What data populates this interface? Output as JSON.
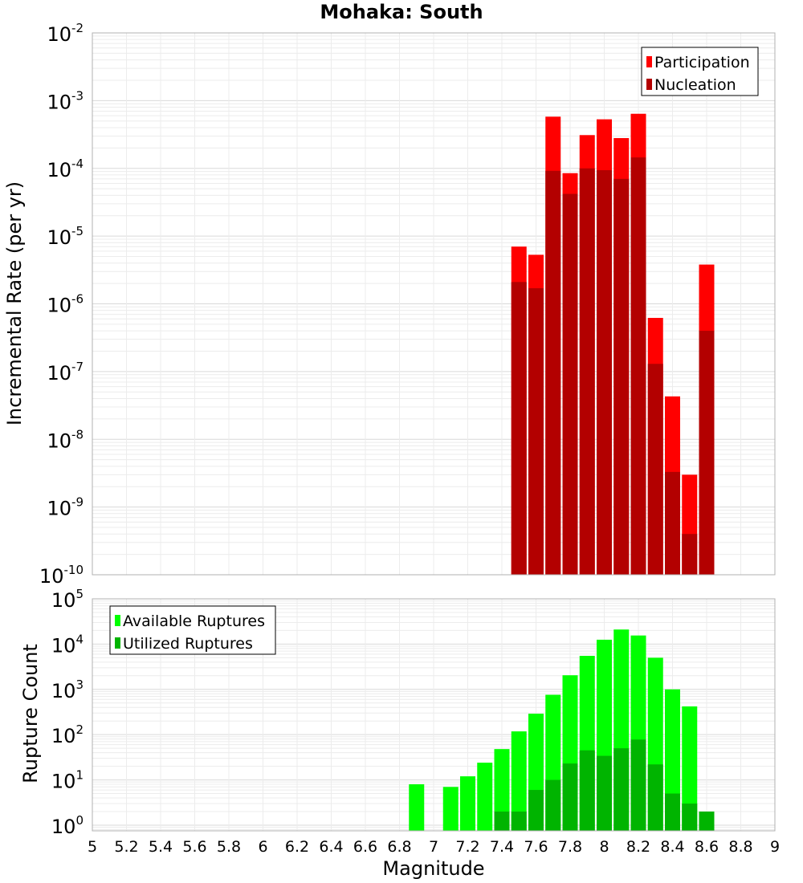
{
  "chart_data": [
    {
      "type": "bar",
      "title": "Mohaka: South",
      "xlabel": "",
      "ylabel": "Incremental Rate (per yr)",
      "yscale": "log",
      "ylim": [
        1e-10,
        0.01
      ],
      "xlim": [
        5,
        9
      ],
      "grid": true,
      "legend_position": "top-right",
      "x": [
        7.5,
        7.6,
        7.7,
        7.8,
        7.9,
        8.0,
        8.1,
        8.2,
        8.3,
        8.4,
        8.5,
        8.6
      ],
      "series": [
        {
          "name": "Participation",
          "color": "#ff0000",
          "values": [
            7e-06,
            5.3e-06,
            0.00058,
            8.5e-05,
            0.00031,
            0.00053,
            0.00028,
            0.00064,
            6.2e-07,
            4.3e-08,
            3e-09,
            3.8e-06
          ]
        },
        {
          "name": "Nucleation",
          "color": "#b30000",
          "values": [
            2.1e-06,
            1.7e-06,
            9.2e-05,
            4.2e-05,
            0.0001,
            9.4e-05,
            7e-05,
            0.000145,
            1.3e-07,
            3.3e-09,
            4e-10,
            4e-07
          ]
        }
      ],
      "ytick_exponents": [
        "-2",
        "-3",
        "-4",
        "-5",
        "-6",
        "-7",
        "-8",
        "-9",
        "-10"
      ]
    },
    {
      "type": "bar",
      "title": "",
      "xlabel": "Magnitude",
      "ylabel": "Rupture Count",
      "yscale": "log",
      "ylim": [
        0.75,
        100000
      ],
      "xlim": [
        5,
        9
      ],
      "grid": true,
      "legend_position": "top-left",
      "xticks": [
        "5",
        "5.2",
        "5.4",
        "5.6",
        "5.8",
        "6",
        "6.2",
        "6.4",
        "6.6",
        "6.8",
        "7",
        "7.2",
        "7.4",
        "7.6",
        "7.8",
        "8",
        "8.2",
        "8.4",
        "8.6",
        "8.8",
        "9"
      ],
      "series": [
        {
          "name": "Available Ruptures",
          "color": "#00ff00",
          "x": [
            6.9,
            7.1,
            7.2,
            7.3,
            7.4,
            7.5,
            7.6,
            7.7,
            7.8,
            7.9,
            8.0,
            8.1,
            8.2,
            8.3,
            8.4,
            8.5
          ],
          "values": [
            8,
            7,
            12,
            24,
            48,
            118,
            290,
            760,
            2050,
            5500,
            12500,
            21000,
            15500,
            5000,
            1000,
            420
          ]
        },
        {
          "name": "Utilized Ruptures",
          "color": "#00b400",
          "x": [
            7.4,
            7.5,
            7.6,
            7.7,
            7.8,
            7.9,
            8.0,
            8.1,
            8.2,
            8.3,
            8.4,
            8.5,
            8.6
          ],
          "values": [
            2,
            2,
            6,
            10,
            23,
            45,
            34,
            50,
            78,
            22,
            5,
            3,
            2
          ]
        }
      ],
      "ytick_exponents": [
        "5",
        "4",
        "3",
        "2",
        "1",
        "0"
      ]
    }
  ]
}
